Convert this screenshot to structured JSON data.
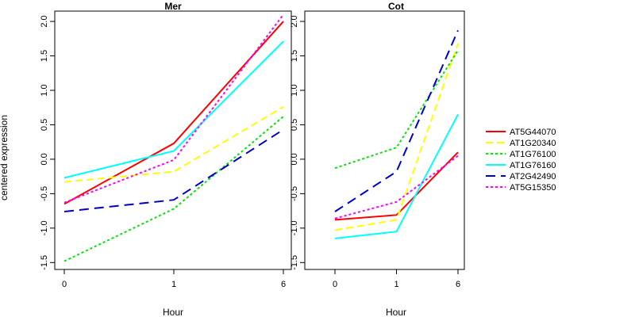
{
  "figure": {
    "ylabel": "centered expression"
  },
  "chart_data": [
    {
      "type": "line",
      "title": "Mer",
      "xlabel": "Hour",
      "ylabel": "centered expression",
      "categories": [
        "0",
        "1",
        "6"
      ],
      "ylim": [
        -1.6,
        2.15
      ],
      "yticks": [
        "-1.5",
        "-1.0",
        "-0.5",
        "0.0",
        "0.5",
        "1.0",
        "1.5",
        "2.0"
      ],
      "grid": false,
      "series": [
        {
          "name": "AT5G44070",
          "values": [
            -0.65,
            0.23,
            2.0
          ]
        },
        {
          "name": "AT1G20340",
          "values": [
            -0.33,
            -0.18,
            0.76
          ]
        },
        {
          "name": "AT1G76100",
          "values": [
            -1.48,
            -0.72,
            0.62
          ]
        },
        {
          "name": "AT1G76160",
          "values": [
            -0.27,
            0.12,
            1.71
          ]
        },
        {
          "name": "AT2G42490",
          "values": [
            -0.76,
            -0.59,
            0.43
          ]
        },
        {
          "name": "AT5G15350",
          "values": [
            -0.63,
            -0.01,
            2.1
          ]
        }
      ]
    },
    {
      "type": "line",
      "title": "Cot",
      "xlabel": "Hour",
      "ylabel": "",
      "categories": [
        "0",
        "1",
        "6"
      ],
      "ylim": [
        -1.6,
        2.15
      ],
      "yticks": [
        "-1.5",
        "-1.0",
        "-0.5",
        "0.0",
        "0.5",
        "1.0",
        "1.5",
        "2.0"
      ],
      "grid": false,
      "series": [
        {
          "name": "AT5G44070",
          "values": [
            -0.88,
            -0.81,
            0.1
          ]
        },
        {
          "name": "AT1G20340",
          "values": [
            -1.03,
            -0.88,
            1.68
          ]
        },
        {
          "name": "AT1G76100",
          "values": [
            -0.13,
            0.17,
            1.58
          ]
        },
        {
          "name": "AT1G76160",
          "values": [
            -1.15,
            -1.05,
            0.65
          ]
        },
        {
          "name": "AT2G42490",
          "values": [
            -0.76,
            -0.18,
            1.87
          ]
        },
        {
          "name": "AT5G15350",
          "values": [
            -0.86,
            -0.62,
            0.05
          ]
        }
      ]
    }
  ],
  "legend": {
    "placement": "right",
    "entries": [
      {
        "name": "AT5G44070",
        "color": "#ff0000",
        "style": "solid"
      },
      {
        "name": "AT1G20340",
        "color": "#ffff00",
        "style": "dashed"
      },
      {
        "name": "AT1G76100",
        "color": "#00e600",
        "style": "dotted"
      },
      {
        "name": "AT1G76160",
        "color": "#00ffff",
        "style": "solid"
      },
      {
        "name": "AT2G42490",
        "color": "#0000cc",
        "style": "longdash"
      },
      {
        "name": "AT5G15350",
        "color": "#ff00ff",
        "style": "dotted"
      }
    ]
  }
}
